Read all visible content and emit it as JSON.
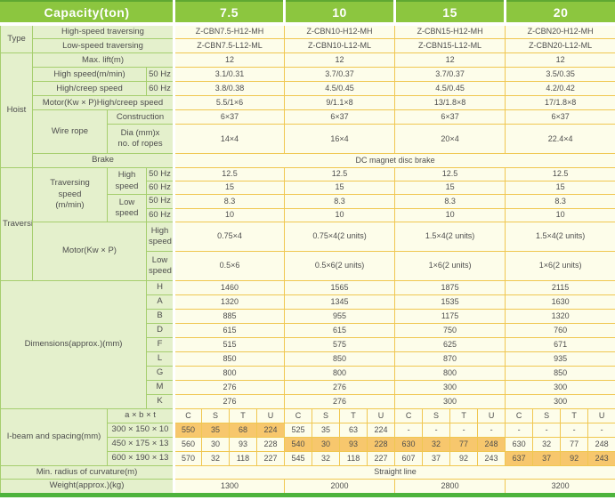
{
  "colors": {
    "header_green": "#8cc63f",
    "accent_dark_green": "#4db33c",
    "label_cell_green": "#e4f0cc",
    "label_border_green": "#a6ce6e",
    "data_cell_ivory": "#fdfdea",
    "data_border_gold": "#f0c751",
    "highlight_orange": "#f7c76d",
    "header_text": "#ffffff",
    "body_text": "#4e4e4e"
  },
  "header": {
    "capacity_label": "Capacity(ton)",
    "capacities": [
      "7.5",
      "10",
      "15",
      "20"
    ]
  },
  "table": {
    "rows": [
      {
        "cells": [
          {
            "t": "Type",
            "k": "g",
            "rs": 2,
            "n": "group-label-type"
          },
          {
            "t": "High-speed traversing",
            "k": "l",
            "cs": 3,
            "n": "label-high-speed-traversing"
          },
          {
            "t": "Z-CBN7.5-H12-MH",
            "cs": 4
          },
          {
            "t": "Z-CBN10-H12-MH",
            "cs": 4
          },
          {
            "t": "Z-CBN15-H12-MH",
            "cs": 4
          },
          {
            "t": "Z-CBN20-H12-MH",
            "cs": 4
          }
        ]
      },
      {
        "cells": [
          {
            "t": "Low-speed traversing",
            "k": "l",
            "cs": 3,
            "n": "label-low-speed-traversing"
          },
          {
            "t": "Z-CBN7.5-L12-ML",
            "cs": 4
          },
          {
            "t": "Z-CBN10-L12-ML",
            "cs": 4
          },
          {
            "t": "Z-CBN15-L12-ML",
            "cs": 4
          },
          {
            "t": "Z-CBN20-L12-ML",
            "cs": 4
          }
        ]
      },
      {
        "cells": [
          {
            "t": "Hoist",
            "k": "g",
            "rs": 7,
            "n": "group-label-hoist"
          },
          {
            "t": "Max. lift(m)",
            "k": "l",
            "cs": 3,
            "n": "label-max-lift"
          },
          {
            "t": "12",
            "cs": 4
          },
          {
            "t": "12",
            "cs": 4
          },
          {
            "t": "12",
            "cs": 4
          },
          {
            "t": "12",
            "cs": 4
          }
        ]
      },
      {
        "cells": [
          {
            "t": "High speed(m/min)",
            "k": "l",
            "cs": 2,
            "n": "label-high-speed"
          },
          {
            "t": "50 Hz",
            "k": "l",
            "n": "label-50hz"
          },
          {
            "t": "3.1/0.31",
            "cs": 4
          },
          {
            "t": "3.7/0.37",
            "cs": 4
          },
          {
            "t": "3.7/0.37",
            "cs": 4
          },
          {
            "t": "3.5/0.35",
            "cs": 4
          }
        ]
      },
      {
        "cells": [
          {
            "t": "High/creep speed",
            "k": "l",
            "cs": 2,
            "n": "label-high-creep-speed"
          },
          {
            "t": "60 Hz",
            "k": "l",
            "n": "label-60hz"
          },
          {
            "t": "3.8/0.38",
            "cs": 4
          },
          {
            "t": "4.5/0.45",
            "cs": 4
          },
          {
            "t": "4.5/0.45",
            "cs": 4
          },
          {
            "t": "4.2/0.42",
            "cs": 4
          }
        ]
      },
      {
        "cells": [
          {
            "t": "Motor(Kw × P)High/creep speed",
            "k": "l",
            "cs": 3,
            "n": "label-hoist-motor"
          },
          {
            "t": "5.5/1×6",
            "cs": 4
          },
          {
            "t": "9/1.1×8",
            "cs": 4
          },
          {
            "t": "13/1.8×8",
            "cs": 4
          },
          {
            "t": "17/1.8×8",
            "cs": 4
          }
        ]
      },
      {
        "cells": [
          {
            "t": "Wire rope",
            "k": "l",
            "rs": 2,
            "n": "label-wire-rope"
          },
          {
            "t": "Construction",
            "k": "l",
            "cs": 2,
            "n": "label-construction"
          },
          {
            "t": "6×37",
            "cs": 4
          },
          {
            "t": "6×37",
            "cs": 4
          },
          {
            "t": "6×37",
            "cs": 4
          },
          {
            "t": "6×37",
            "cs": 4
          }
        ]
      },
      {
        "cls": "tall",
        "cells": [
          {
            "t": "Dia (mm)x\nno. of ropes",
            "k": "l",
            "cs": 2,
            "n": "label-dia-ropes"
          },
          {
            "t": "14×4",
            "cs": 4
          },
          {
            "t": "16×4",
            "cs": 4
          },
          {
            "t": "20×4",
            "cs": 4
          },
          {
            "t": "22.4×4",
            "cs": 4
          }
        ]
      },
      {
        "cls": "short",
        "cells": [
          {
            "t": "Brake",
            "k": "l",
            "cs": 3,
            "n": "label-brake"
          },
          {
            "t": "DC magnet disc brake",
            "cs": 16,
            "n": "brake-value"
          }
        ]
      },
      {
        "cls": "short",
        "cells": [
          {
            "t": "Traversing",
            "k": "g",
            "rs": 6,
            "n": "group-label-traversing"
          },
          {
            "t": "Traversing\nspeed\n(m/min)",
            "k": "l",
            "rs": 4,
            "n": "label-traversing-speed"
          },
          {
            "t": "High\nspeed",
            "k": "l",
            "rs": 2,
            "n": "label-trav-high-speed"
          },
          {
            "t": "50 Hz",
            "k": "l",
            "n": "label-50hz"
          },
          {
            "t": "12.5",
            "cs": 4
          },
          {
            "t": "12.5",
            "cs": 4
          },
          {
            "t": "12.5",
            "cs": 4
          },
          {
            "t": "12.5",
            "cs": 4
          }
        ]
      },
      {
        "cls": "short",
        "cells": [
          {
            "t": "60 Hz",
            "k": "l",
            "n": "label-60hz"
          },
          {
            "t": "15",
            "cs": 4
          },
          {
            "t": "15",
            "cs": 4
          },
          {
            "t": "15",
            "cs": 4
          },
          {
            "t": "15",
            "cs": 4
          }
        ]
      },
      {
        "cls": "short",
        "cells": [
          {
            "t": "Low\nspeed",
            "k": "l",
            "rs": 2,
            "n": "label-trav-low-speed"
          },
          {
            "t": "50 Hz",
            "k": "l",
            "n": "label-50hz"
          },
          {
            "t": "8.3",
            "cs": 4
          },
          {
            "t": "8.3",
            "cs": 4
          },
          {
            "t": "8.3",
            "cs": 4
          },
          {
            "t": "8.3",
            "cs": 4
          }
        ]
      },
      {
        "cls": "short",
        "cells": [
          {
            "t": "60 Hz",
            "k": "l",
            "n": "label-60hz"
          },
          {
            "t": "10",
            "cs": 4
          },
          {
            "t": "10",
            "cs": 4
          },
          {
            "t": "10",
            "cs": 4
          },
          {
            "t": "10",
            "cs": 4
          }
        ]
      },
      {
        "cls": "tall",
        "cells": [
          {
            "t": "Motor(Kw × P)",
            "k": "l",
            "rs": 2,
            "cs": 2,
            "n": "label-traversing-motor"
          },
          {
            "t": "High\nspeed",
            "k": "l",
            "n": "label-motor-high-speed"
          },
          {
            "t": "0.75×4",
            "cs": 4
          },
          {
            "t": "0.75×4(2 units)",
            "cs": 4
          },
          {
            "t": "1.5×4(2 units)",
            "cs": 4
          },
          {
            "t": "1.5×4(2 units)",
            "cs": 4
          }
        ]
      },
      {
        "cls": "tall",
        "cells": [
          {
            "t": "Low\nspeed",
            "k": "l",
            "n": "label-motor-low-speed"
          },
          {
            "t": "0.5×6",
            "cs": 4
          },
          {
            "t": "0.5×6(2 units)",
            "cs": 4
          },
          {
            "t": "1×6(2 units)",
            "cs": 4
          },
          {
            "t": "1×6(2 units)",
            "cs": 4
          }
        ]
      },
      {
        "cells": [
          {
            "t": "Dimensions(approx.)(mm)",
            "k": "g",
            "rs": 9,
            "cs": 3,
            "n": "group-label-dimensions"
          },
          {
            "t": "H",
            "k": "l",
            "n": "label-dim-h"
          },
          {
            "t": "1460",
            "cs": 4
          },
          {
            "t": "1565",
            "cs": 4
          },
          {
            "t": "1875",
            "cs": 4
          },
          {
            "t": "2115",
            "cs": 4
          }
        ]
      },
      {
        "cells": [
          {
            "t": "A",
            "k": "l",
            "n": "label-dim-a"
          },
          {
            "t": "1320",
            "cs": 4
          },
          {
            "t": "1345",
            "cs": 4
          },
          {
            "t": "1535",
            "cs": 4
          },
          {
            "t": "1630",
            "cs": 4
          }
        ]
      },
      {
        "cells": [
          {
            "t": "B",
            "k": "l",
            "n": "label-dim-b"
          },
          {
            "t": "885",
            "cs": 4
          },
          {
            "t": "955",
            "cs": 4
          },
          {
            "t": "1175",
            "cs": 4
          },
          {
            "t": "1320",
            "cs": 4
          }
        ]
      },
      {
        "cells": [
          {
            "t": "D",
            "k": "l",
            "n": "label-dim-d"
          },
          {
            "t": "615",
            "cs": 4
          },
          {
            "t": "615",
            "cs": 4
          },
          {
            "t": "750",
            "cs": 4
          },
          {
            "t": "760",
            "cs": 4
          }
        ]
      },
      {
        "cells": [
          {
            "t": "F",
            "k": "l",
            "n": "label-dim-f"
          },
          {
            "t": "515",
            "cs": 4
          },
          {
            "t": "575",
            "cs": 4
          },
          {
            "t": "625",
            "cs": 4
          },
          {
            "t": "671",
            "cs": 4
          }
        ]
      },
      {
        "cells": [
          {
            "t": "L",
            "k": "l",
            "n": "label-dim-l"
          },
          {
            "t": "850",
            "cs": 4
          },
          {
            "t": "850",
            "cs": 4
          },
          {
            "t": "870",
            "cs": 4
          },
          {
            "t": "935",
            "cs": 4
          }
        ]
      },
      {
        "cells": [
          {
            "t": "G",
            "k": "l",
            "n": "label-dim-g"
          },
          {
            "t": "800",
            "cs": 4
          },
          {
            "t": "800",
            "cs": 4
          },
          {
            "t": "800",
            "cs": 4
          },
          {
            "t": "850",
            "cs": 4
          }
        ]
      },
      {
        "cells": [
          {
            "t": "M",
            "k": "l",
            "n": "label-dim-m"
          },
          {
            "t": "276",
            "cs": 4
          },
          {
            "t": "276",
            "cs": 4
          },
          {
            "t": "300",
            "cs": 4
          },
          {
            "t": "300",
            "cs": 4
          }
        ]
      },
      {
        "cells": [
          {
            "t": "K",
            "k": "l",
            "n": "label-dim-k"
          },
          {
            "t": "276",
            "cs": 4
          },
          {
            "t": "276",
            "cs": 4
          },
          {
            "t": "300",
            "cs": 4
          },
          {
            "t": "300",
            "cs": 4
          }
        ]
      },
      {
        "cells": [
          {
            "t": "I-beam and spacing(mm)",
            "k": "g",
            "rs": 4,
            "cs": 2,
            "n": "group-label-ibeam"
          },
          {
            "t": "a × b × t",
            "k": "l",
            "cs": 2,
            "n": "label-a-b-t"
          },
          {
            "t": "C",
            "k": "ch"
          },
          {
            "t": "S",
            "k": "ch"
          },
          {
            "t": "T",
            "k": "ch"
          },
          {
            "t": "U",
            "k": "ch"
          },
          {
            "t": "C",
            "k": "ch"
          },
          {
            "t": "S",
            "k": "ch"
          },
          {
            "t": "T",
            "k": "ch"
          },
          {
            "t": "U",
            "k": "ch"
          },
          {
            "t": "C",
            "k": "ch"
          },
          {
            "t": "S",
            "k": "ch"
          },
          {
            "t": "T",
            "k": "ch"
          },
          {
            "t": "U",
            "k": "ch"
          },
          {
            "t": "C",
            "k": "ch"
          },
          {
            "t": "S",
            "k": "ch"
          },
          {
            "t": "T",
            "k": "ch"
          },
          {
            "t": "U",
            "k": "ch"
          }
        ]
      },
      {
        "cells": [
          {
            "t": "300 × 150 × 10",
            "k": "l",
            "cs": 2,
            "n": "label-beam-300"
          },
          {
            "t": "550",
            "k": "dh"
          },
          {
            "t": "35",
            "k": "dh"
          },
          {
            "t": "68",
            "k": "dh"
          },
          {
            "t": "224",
            "k": "dh"
          },
          {
            "t": "525"
          },
          {
            "t": "35"
          },
          {
            "t": "63"
          },
          {
            "t": "224"
          },
          {
            "t": "-"
          },
          {
            "t": "-"
          },
          {
            "t": "-"
          },
          {
            "t": "-"
          },
          {
            "t": "-"
          },
          {
            "t": "-"
          },
          {
            "t": "-"
          },
          {
            "t": "-"
          }
        ]
      },
      {
        "cells": [
          {
            "t": "450 × 175 × 13",
            "k": "l",
            "cs": 2,
            "n": "label-beam-450"
          },
          {
            "t": "560"
          },
          {
            "t": "30"
          },
          {
            "t": "93"
          },
          {
            "t": "228"
          },
          {
            "t": "540",
            "k": "dh"
          },
          {
            "t": "30",
            "k": "dh"
          },
          {
            "t": "93",
            "k": "dh"
          },
          {
            "t": "228",
            "k": "dh"
          },
          {
            "t": "630",
            "k": "dh"
          },
          {
            "t": "32",
            "k": "dh"
          },
          {
            "t": "77",
            "k": "dh"
          },
          {
            "t": "248",
            "k": "dh"
          },
          {
            "t": "630"
          },
          {
            "t": "32"
          },
          {
            "t": "77"
          },
          {
            "t": "248"
          }
        ]
      },
      {
        "cells": [
          {
            "t": "600 × 190 × 13",
            "k": "l",
            "cs": 2,
            "n": "label-beam-600"
          },
          {
            "t": "570"
          },
          {
            "t": "32"
          },
          {
            "t": "118"
          },
          {
            "t": "227"
          },
          {
            "t": "545"
          },
          {
            "t": "32"
          },
          {
            "t": "118"
          },
          {
            "t": "227"
          },
          {
            "t": "607"
          },
          {
            "t": "37"
          },
          {
            "t": "92"
          },
          {
            "t": "243"
          },
          {
            "t": "637",
            "k": "dh"
          },
          {
            "t": "37",
            "k": "dh"
          },
          {
            "t": "92",
            "k": "dh"
          },
          {
            "t": "243",
            "k": "dh"
          }
        ]
      },
      {
        "cls": "short",
        "cells": [
          {
            "t": "Min. radius of curvature(m)",
            "k": "l",
            "cs": 4,
            "n": "label-min-radius"
          },
          {
            "t": "Straight line",
            "cs": 16,
            "n": "min-radius-value"
          }
        ]
      },
      {
        "cells": [
          {
            "t": "Weight(approx.)(kg)",
            "k": "l",
            "cs": 4,
            "n": "label-weight"
          },
          {
            "t": "1300",
            "cs": 4
          },
          {
            "t": "2000",
            "cs": 4
          },
          {
            "t": "2800",
            "cs": 4
          },
          {
            "t": "3200",
            "cs": 4
          }
        ]
      }
    ]
  }
}
